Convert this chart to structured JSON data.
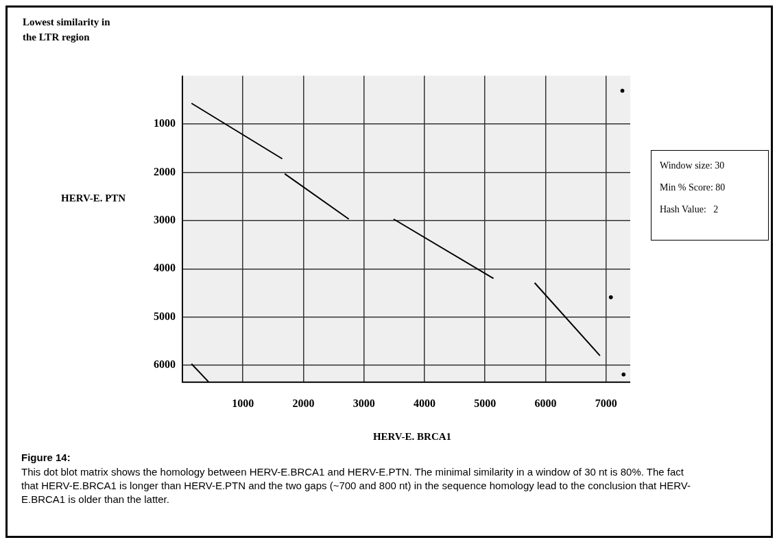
{
  "chart_data": {
    "type": "line",
    "title": "Lowest similarity in the LTR region",
    "xlabel": "HERV-E. BRCA1",
    "ylabel": "HERV-E. PTN",
    "xlim": [
      0,
      7400
    ],
    "xticks": [
      1000,
      2000,
      3000,
      4000,
      5000,
      6000,
      7000
    ],
    "ylim": [
      6350,
      0
    ],
    "yticks": [
      1000,
      2000,
      3000,
      4000,
      5000,
      6000
    ],
    "grid": true,
    "legend": false,
    "marker": "none",
    "line_style": "solid",
    "series": [
      {
        "color": "#000000",
        "x": [
          150,
          1650,
          null,
          1690,
          2750,
          null,
          3490,
          5140,
          null,
          5820,
          6900,
          null,
          150,
          430
        ],
        "values": [
          570,
          1720,
          null,
          2030,
          2970,
          null,
          2970,
          4200,
          null,
          4290,
          5800,
          null,
          5970,
          6340
        ]
      },
      {
        "type": "scatter",
        "marker": "circle",
        "color": "#000000",
        "x": [
          7270,
          7290,
          7080
        ],
        "values": [
          310,
          6190,
          4590
        ]
      }
    ],
    "annotations": [
      "Window size: 30",
      "Min % Score: 80",
      "Hash Value:   2",
      "Figure 14:",
      "This dot blot matrix shows the homology between HERV-E.BRCA1 and HERV-E.PTN. The minimal similarity in a window of 30 nt is 80%. The fact that HERV-E.BRCA1 is longer than HERV-E.PTN and the two gaps (~700 and 800 nt) in the sequence homology lead to the conclusion that HERV-E.BRCA1 is older than the latter."
    ]
  }
}
